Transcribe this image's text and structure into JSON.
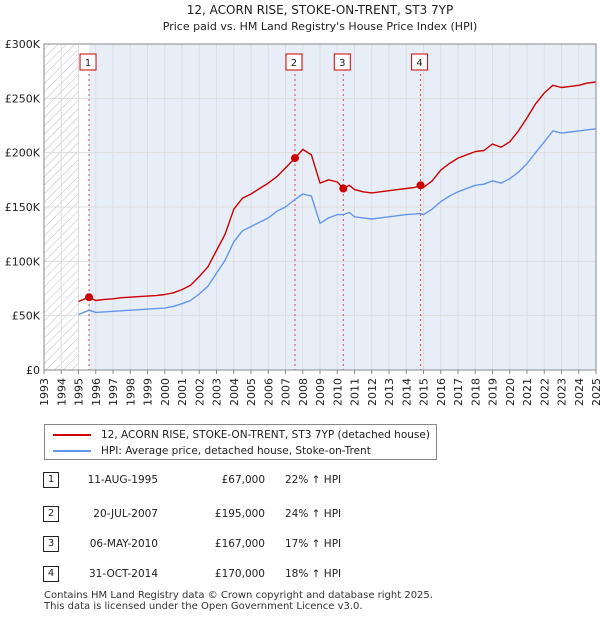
{
  "title": "12, ACORN RISE, STOKE-ON-TRENT, ST3 7YP",
  "subtitle": "Price paid vs. HM Land Registry's House Price Index (HPI)",
  "colors": {
    "property": "#cc0000",
    "hpi": "#6495ed",
    "grid": "#dddddd",
    "shade": "#e8eef8",
    "hatch": "#bbbbbb"
  },
  "legend": {
    "property_label": "12, ACORN RISE, STOKE-ON-TRENT, ST3 7YP (detached house)",
    "hpi_label": "HPI: Average price, detached house, Stoke-on-Trent"
  },
  "sales": [
    {
      "num": "1",
      "date": "11-AUG-1995",
      "price": "£67,000",
      "hpi": "22% ↑ HPI"
    },
    {
      "num": "2",
      "date": "20-JUL-2007",
      "price": "£195,000",
      "hpi": "24% ↑ HPI"
    },
    {
      "num": "3",
      "date": "06-MAY-2010",
      "price": "£167,000",
      "hpi": "17% ↑ HPI"
    },
    {
      "num": "4",
      "date": "31-OCT-2014",
      "price": "£170,000",
      "hpi": "18% ↑ HPI"
    }
  ],
  "footer": {
    "line1": "Contains HM Land Registry data © Crown copyright and database right 2025.",
    "line2": "This data is licensed under the Open Government Licence v3.0."
  },
  "chart_data": {
    "type": "line",
    "title": "12, ACORN RISE, STOKE-ON-TRENT, ST3 7YP",
    "subtitle": "Price paid vs. HM Land Registry's House Price Index (HPI)",
    "xlabel": "",
    "ylabel": "",
    "xlim": [
      1993,
      2025
    ],
    "ylim": [
      0,
      300000
    ],
    "grid": true,
    "legend_position": "below",
    "y_ticks": [
      {
        "value": 0,
        "label": "£0"
      },
      {
        "value": 50000,
        "label": "£50K"
      },
      {
        "value": 100000,
        "label": "£100K"
      },
      {
        "value": 150000,
        "label": "£150K"
      },
      {
        "value": 200000,
        "label": "£200K"
      },
      {
        "value": 250000,
        "label": "£250K"
      },
      {
        "value": 300000,
        "label": "£300K"
      }
    ],
    "x_ticks": [
      "1993",
      "1994",
      "1995",
      "1996",
      "1997",
      "1998",
      "1999",
      "2000",
      "2001",
      "2002",
      "2003",
      "2004",
      "2005",
      "2006",
      "2007",
      "2008",
      "2009",
      "2010",
      "2011",
      "2012",
      "2013",
      "2014",
      "2015",
      "2016",
      "2017",
      "2018",
      "2019",
      "2020",
      "2021",
      "2022",
      "2023",
      "2024",
      "2025"
    ],
    "hatched_until": 1995.0,
    "shaded_from": 1995.61,
    "shaded_until": 2025.0,
    "series": [
      {
        "name": "12, ACORN RISE, STOKE-ON-TRENT, ST3 7YP (detached house)",
        "color": "#cc0000",
        "x": [
          1995.0,
          1995.61,
          1996.0,
          1996.5,
          1997.0,
          1997.5,
          1998.0,
          1998.5,
          1999.0,
          1999.5,
          2000.0,
          2000.5,
          2001.0,
          2001.5,
          2002.0,
          2002.5,
          2003.0,
          2003.5,
          2004.0,
          2004.5,
          2005.0,
          2005.5,
          2006.0,
          2006.5,
          2007.0,
          2007.55,
          2008.0,
          2008.5,
          2009.0,
          2009.5,
          2010.0,
          2010.35,
          2010.7,
          2011.0,
          2011.5,
          2012.0,
          2012.5,
          2013.0,
          2013.5,
          2014.0,
          2014.5,
          2014.83,
          2015.0,
          2015.5,
          2016.0,
          2016.5,
          2017.0,
          2017.5,
          2018.0,
          2018.5,
          2019.0,
          2019.5,
          2020.0,
          2020.5,
          2021.0,
          2021.5,
          2022.0,
          2022.5,
          2023.0,
          2023.5,
          2024.0,
          2024.5,
          2025.0
        ],
        "y": [
          63000,
          67000,
          64000,
          65000,
          65500,
          66500,
          67000,
          67500,
          68000,
          68500,
          69500,
          71000,
          74000,
          78000,
          86000,
          95000,
          110000,
          125000,
          148000,
          158000,
          162000,
          167000,
          172000,
          178000,
          186000,
          195000,
          203000,
          198000,
          172000,
          175000,
          173000,
          167000,
          170000,
          166000,
          164000,
          163000,
          164000,
          165000,
          166000,
          167000,
          168000,
          170000,
          168000,
          174000,
          184000,
          190000,
          195000,
          198000,
          201000,
          202000,
          208000,
          205000,
          210000,
          220000,
          232000,
          245000,
          255000,
          262000,
          260000,
          261000,
          262000,
          264000,
          265000
        ]
      },
      {
        "name": "HPI: Average price, detached house, Stoke-on-Trent",
        "color": "#6495ed",
        "x": [
          1995.0,
          1995.61,
          1996.0,
          1996.5,
          1997.0,
          1997.5,
          1998.0,
          1998.5,
          1999.0,
          1999.5,
          2000.0,
          2000.5,
          2001.0,
          2001.5,
          2002.0,
          2002.5,
          2003.0,
          2003.5,
          2004.0,
          2004.5,
          2005.0,
          2005.5,
          2006.0,
          2006.5,
          2007.0,
          2007.55,
          2008.0,
          2008.5,
          2009.0,
          2009.5,
          2010.0,
          2010.35,
          2010.7,
          2011.0,
          2011.5,
          2012.0,
          2012.5,
          2013.0,
          2013.5,
          2014.0,
          2014.5,
          2014.83,
          2015.0,
          2015.5,
          2016.0,
          2016.5,
          2017.0,
          2017.5,
          2018.0,
          2018.5,
          2019.0,
          2019.5,
          2020.0,
          2020.5,
          2021.0,
          2021.5,
          2022.0,
          2022.5,
          2023.0,
          2023.5,
          2024.0,
          2024.5,
          2025.0
        ],
        "y": [
          51000,
          55000,
          53000,
          53500,
          54000,
          54500,
          55000,
          55500,
          56000,
          56500,
          57000,
          58500,
          61000,
          64000,
          70000,
          77000,
          89000,
          101000,
          118000,
          128000,
          132000,
          136000,
          140000,
          146000,
          150000,
          157000,
          162000,
          160000,
          135000,
          140000,
          143000,
          143000,
          145000,
          141000,
          140000,
          139000,
          140000,
          141000,
          142000,
          143000,
          143500,
          144000,
          143000,
          148000,
          155000,
          160000,
          164000,
          167000,
          170000,
          171000,
          174000,
          172000,
          176000,
          182000,
          190000,
          200000,
          210000,
          220000,
          218000,
          219000,
          220000,
          221000,
          222000
        ]
      }
    ],
    "sale_points": [
      {
        "num": "1",
        "x": 1995.61,
        "y": 67000
      },
      {
        "num": "2",
        "x": 2007.55,
        "y": 195000
      },
      {
        "num": "3",
        "x": 2010.35,
        "y": 167000
      },
      {
        "num": "4",
        "x": 2014.83,
        "y": 170000
      }
    ]
  }
}
